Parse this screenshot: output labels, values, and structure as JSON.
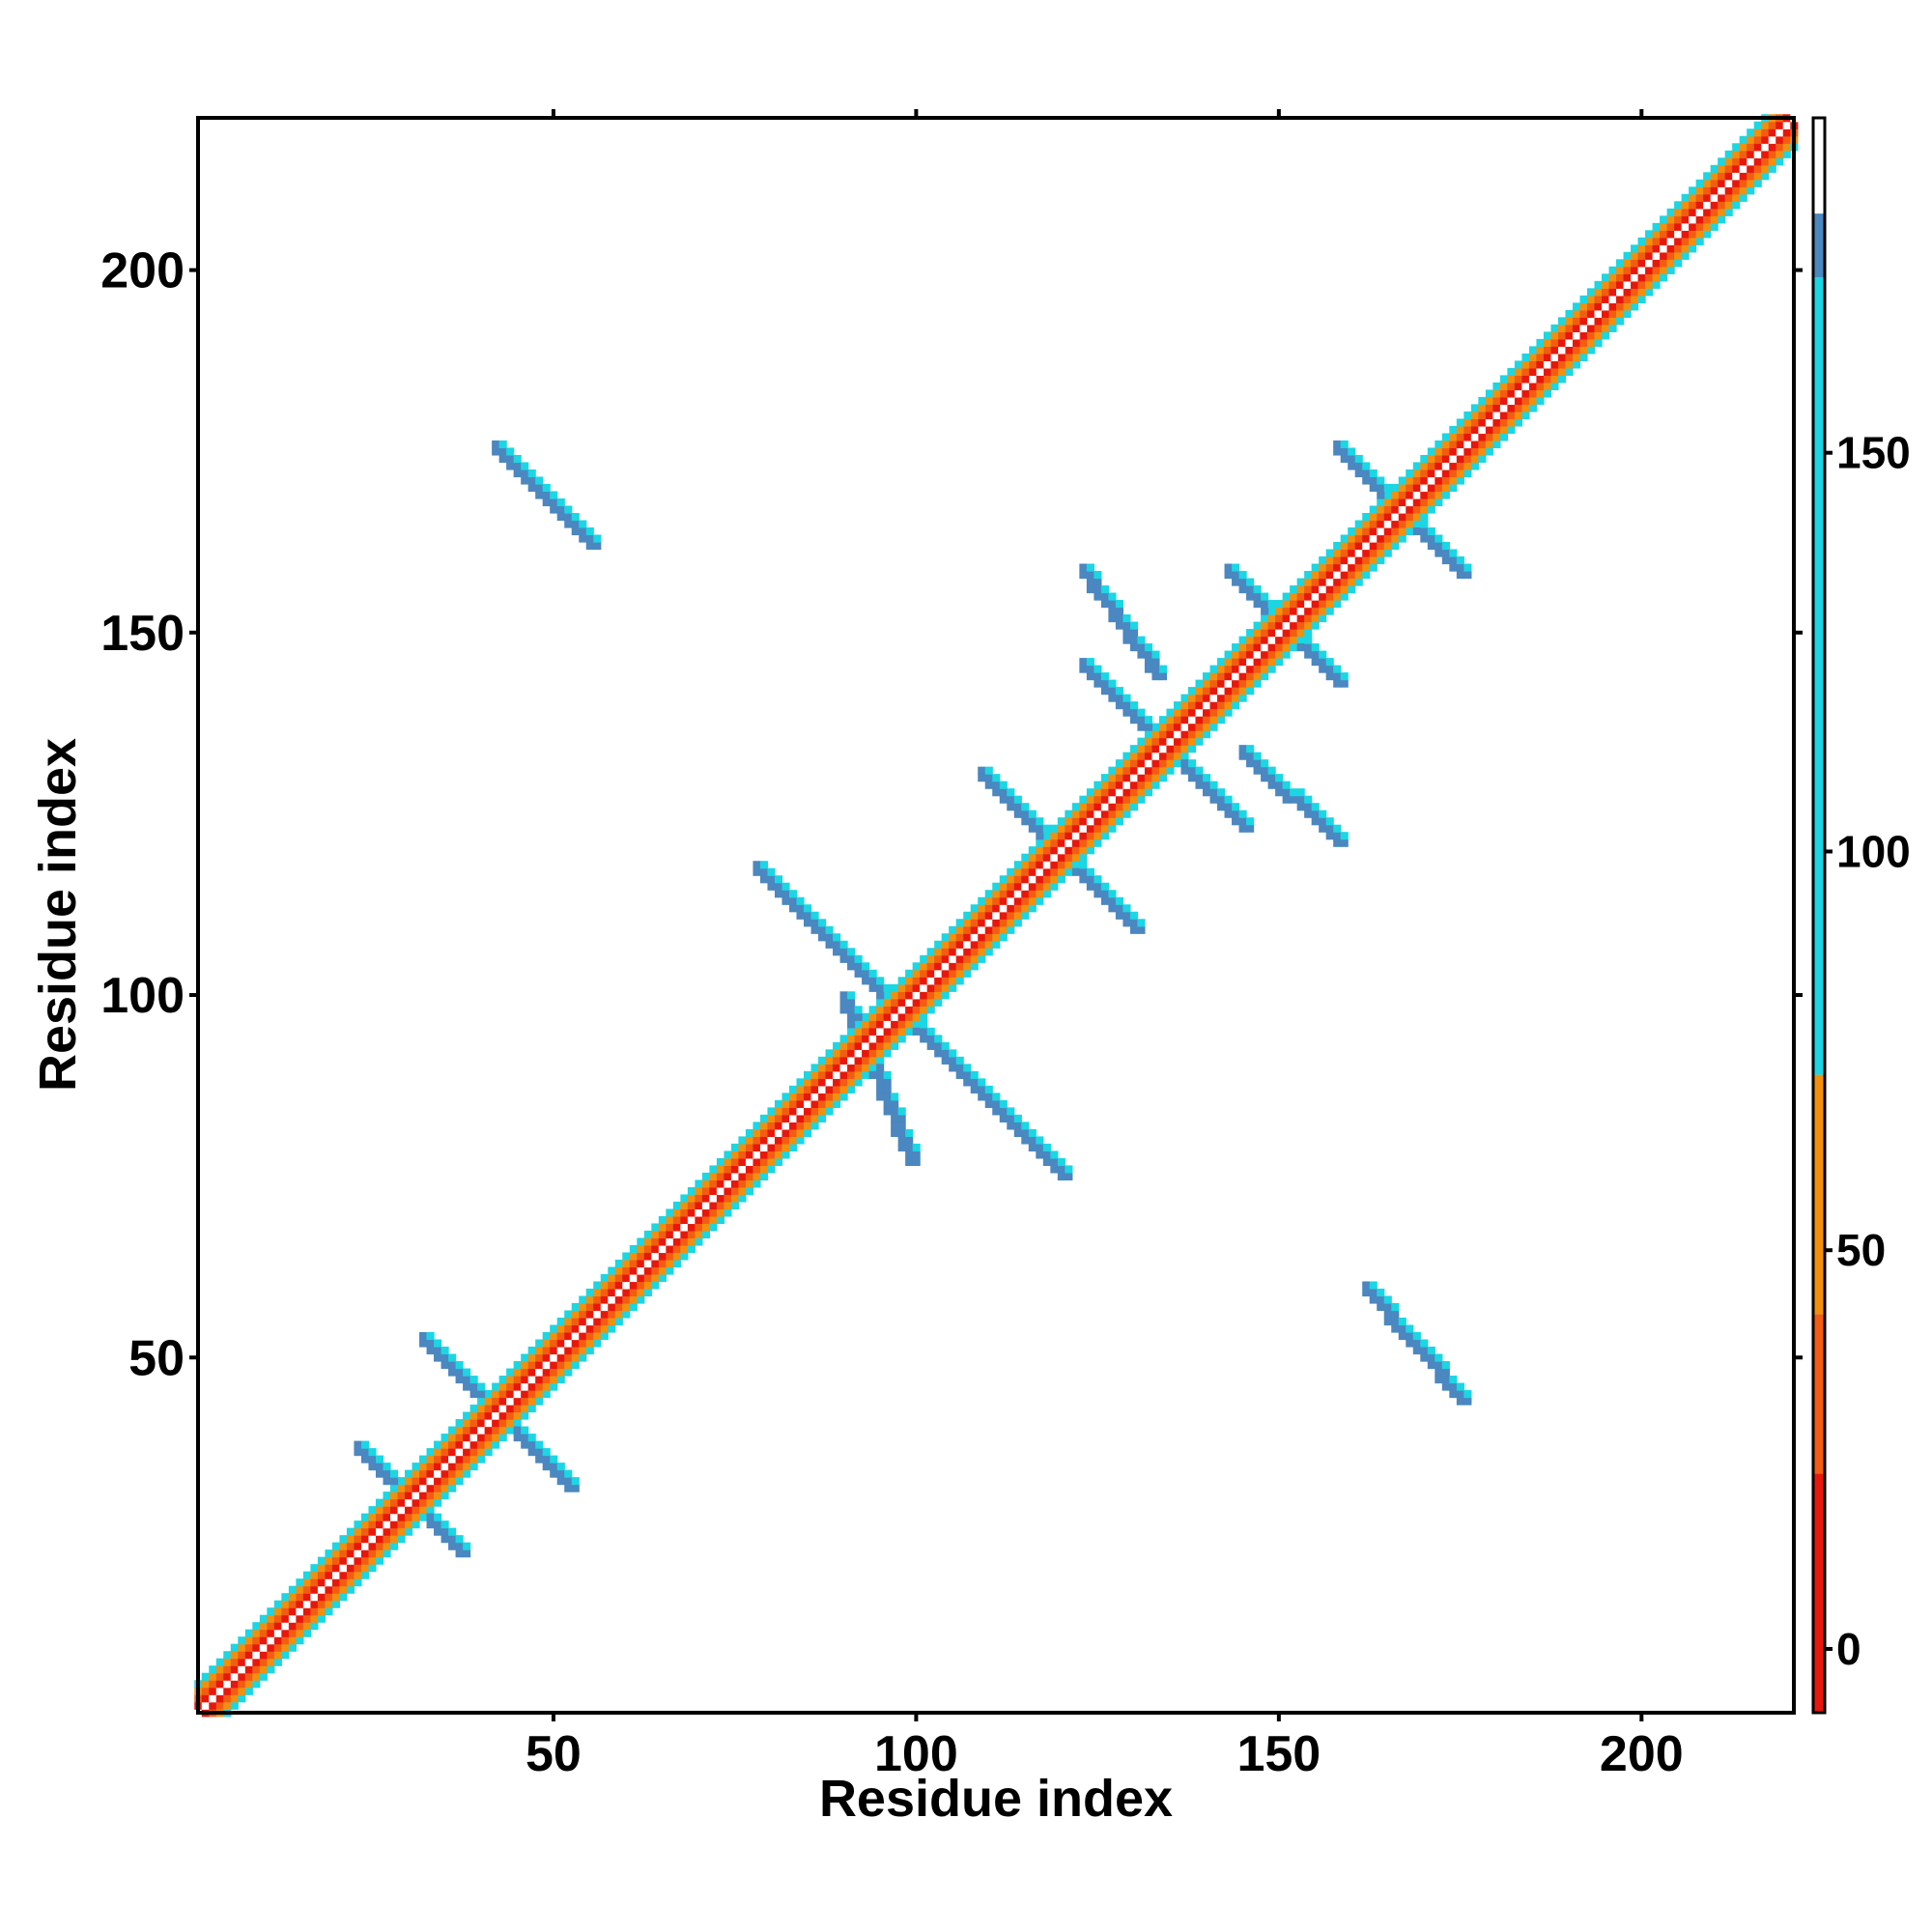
{
  "chart_data": {
    "type": "heatmap",
    "title": "",
    "xlabel": "Residue index",
    "ylabel": "Residue index",
    "xlim": [
      1,
      221
    ],
    "ylim": [
      1,
      221
    ],
    "x_ticks": [
      50,
      100,
      150,
      200
    ],
    "y_ticks": [
      50,
      100,
      150,
      200
    ],
    "colorbar": {
      "ticks": [
        0,
        50,
        100,
        150
      ],
      "range": [
        -8,
        192
      ],
      "bands": [
        {
          "from": -8,
          "to": 22,
          "color": "#e8170c"
        },
        {
          "from": 22,
          "to": 42,
          "color": "#f25d12"
        },
        {
          "from": 42,
          "to": 72,
          "color": "#f2900e"
        },
        {
          "from": 72,
          "to": 172,
          "color": "#1bd6e3"
        },
        {
          "from": 172,
          "to": 180,
          "color": "#4b87c0"
        },
        {
          "from": 180,
          "to": 192,
          "color": "#ffffff"
        }
      ]
    },
    "series": [
      {
        "values": [
          [
            1,
            221,
            1,
            221,
            "diag"
          ],
          [
            23,
            37,
            37,
            23,
            "anti"
          ],
          [
            32,
            52,
            52,
            32,
            "anti"
          ],
          [
            90,
            99,
            99,
            77,
            "anti"
          ],
          [
            78,
            117,
            117,
            78,
            "anti"
          ],
          [
            105,
            120,
            90,
            75,
            "anti"
          ],
          [
            109,
            130,
            130,
            109,
            "anti"
          ],
          [
            123,
            145,
            145,
            123,
            "anti"
          ],
          [
            143,
            158,
            158,
            143,
            "anti"
          ],
          [
            158,
            175,
            175,
            158,
            "anti"
          ],
          [
            42,
            55,
            175,
            162,
            "anti"
          ],
          [
            123,
            133,
            158,
            144,
            "anti"
          ],
          [
            145,
            158,
            133,
            121,
            "anti"
          ],
          [
            162,
            175,
            59,
            44,
            "anti"
          ]
        ]
      }
    ]
  }
}
